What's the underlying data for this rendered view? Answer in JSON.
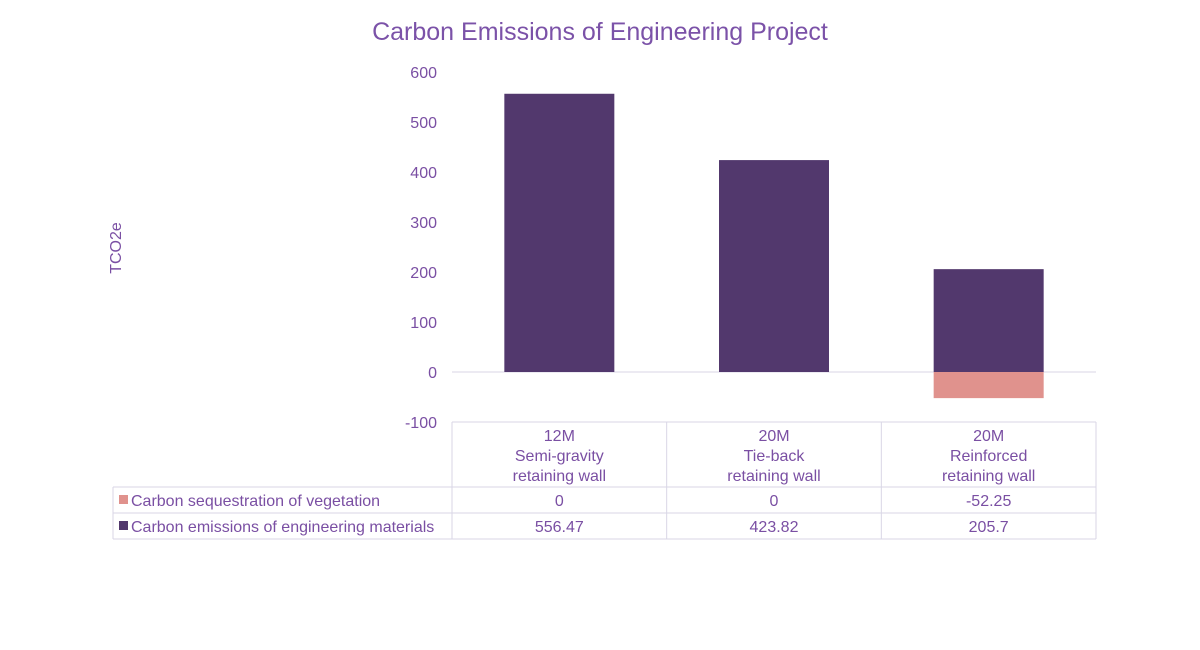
{
  "chart_data": {
    "type": "bar",
    "stacked": true,
    "title": "Carbon Emissions of Engineering Project",
    "ylabel": "TCO2e",
    "xlabel": "",
    "ylim": [
      -100,
      600
    ],
    "yticks": [
      600,
      500,
      400,
      300,
      200,
      100,
      0,
      -100
    ],
    "grid": false,
    "legend": "data-table-left",
    "categories": [
      [
        "12M",
        "Semi-gravity",
        "retaining wall"
      ],
      [
        "20M",
        "Tie-back",
        "retaining wall"
      ],
      [
        "20M",
        "Reinforced",
        "retaining wall"
      ]
    ],
    "series": [
      {
        "name": "Carbon sequestration of vegetation",
        "color": "#e0928d",
        "values": [
          0,
          0,
          -52.25
        ],
        "labels": [
          "0",
          "0",
          "-52.25"
        ]
      },
      {
        "name": "Carbon emissions of engineering materials",
        "color": "#52386d",
        "values": [
          556.47,
          423.82,
          205.7
        ],
        "labels": [
          "556.47",
          "423.82",
          "205.7"
        ]
      }
    ]
  },
  "colors": {
    "text": "#7a4fa3",
    "title": "#7b52a8",
    "grid": "#d9d6e6"
  }
}
